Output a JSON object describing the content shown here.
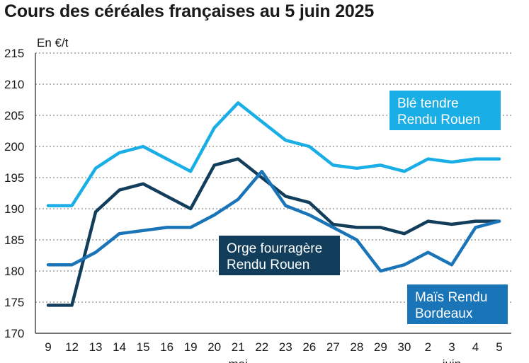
{
  "chart_data": {
    "type": "line",
    "title": "Cours des céréales françaises au 5 juin 2025",
    "ylabel": "En €/t",
    "xlabel": "",
    "ylim": [
      170,
      215
    ],
    "yticks": [
      170,
      175,
      180,
      185,
      190,
      195,
      200,
      205,
      210,
      215
    ],
    "categories": [
      "9",
      "12",
      "13",
      "14",
      "15",
      "16",
      "19",
      "20",
      "21",
      "22",
      "23",
      "26",
      "27",
      "28",
      "29",
      "30",
      "2",
      "3",
      "4",
      "5"
    ],
    "month_labels": [
      {
        "label": "mai",
        "at": "21"
      },
      {
        "label": "juin",
        "at": "3"
      }
    ],
    "grid": "horizontal",
    "series": [
      {
        "name_lines": [
          "Blé tendre",
          "Rendu Rouen"
        ],
        "color": "#1aaee6",
        "values": [
          190.5,
          190.5,
          196.5,
          199,
          200,
          198,
          196,
          203,
          207,
          204,
          201,
          200,
          197,
          196.5,
          197,
          196,
          198,
          197.5,
          198,
          198
        ]
      },
      {
        "name_lines": [
          "Orge fourragère",
          "Rendu Rouen"
        ],
        "color": "#123e5c",
        "values": [
          174.5,
          174.5,
          189.5,
          193,
          194,
          192,
          190,
          197,
          198,
          195,
          192,
          191,
          187.5,
          187,
          187,
          186,
          188,
          187.5,
          188,
          188
        ]
      },
      {
        "name_lines": [
          "Maïs Rendu",
          "Bordeaux"
        ],
        "color": "#1a74b8",
        "values": [
          181,
          181,
          183,
          186,
          186.5,
          187,
          187,
          189,
          191.5,
          196,
          190.5,
          189,
          187,
          185,
          180,
          181,
          183,
          181,
          187,
          188
        ]
      }
    ]
  }
}
